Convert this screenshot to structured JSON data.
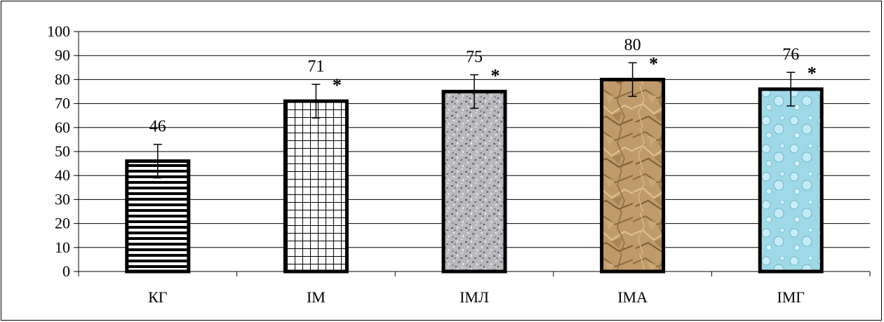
{
  "chart_data": {
    "type": "bar",
    "title": "",
    "xlabel": "",
    "ylabel": "",
    "ylim": [
      0,
      100
    ],
    "yticks": [
      0,
      10,
      20,
      30,
      40,
      50,
      60,
      70,
      80,
      90,
      100
    ],
    "grid": true,
    "categories": [
      "КГ",
      "ІМ",
      "ІМЛ",
      "ІМА",
      "ІМГ"
    ],
    "values": [
      46,
      71,
      75,
      80,
      76
    ],
    "value_labels": [
      "46",
      "71",
      "75",
      "80",
      "76"
    ],
    "error": [
      7,
      7,
      7,
      7,
      7
    ],
    "significance": [
      "",
      "*",
      "*",
      "*",
      "*"
    ],
    "fills": [
      "horizontal-stripes",
      "grid",
      "granite",
      "crumpled-paper",
      "water-droplets"
    ]
  }
}
